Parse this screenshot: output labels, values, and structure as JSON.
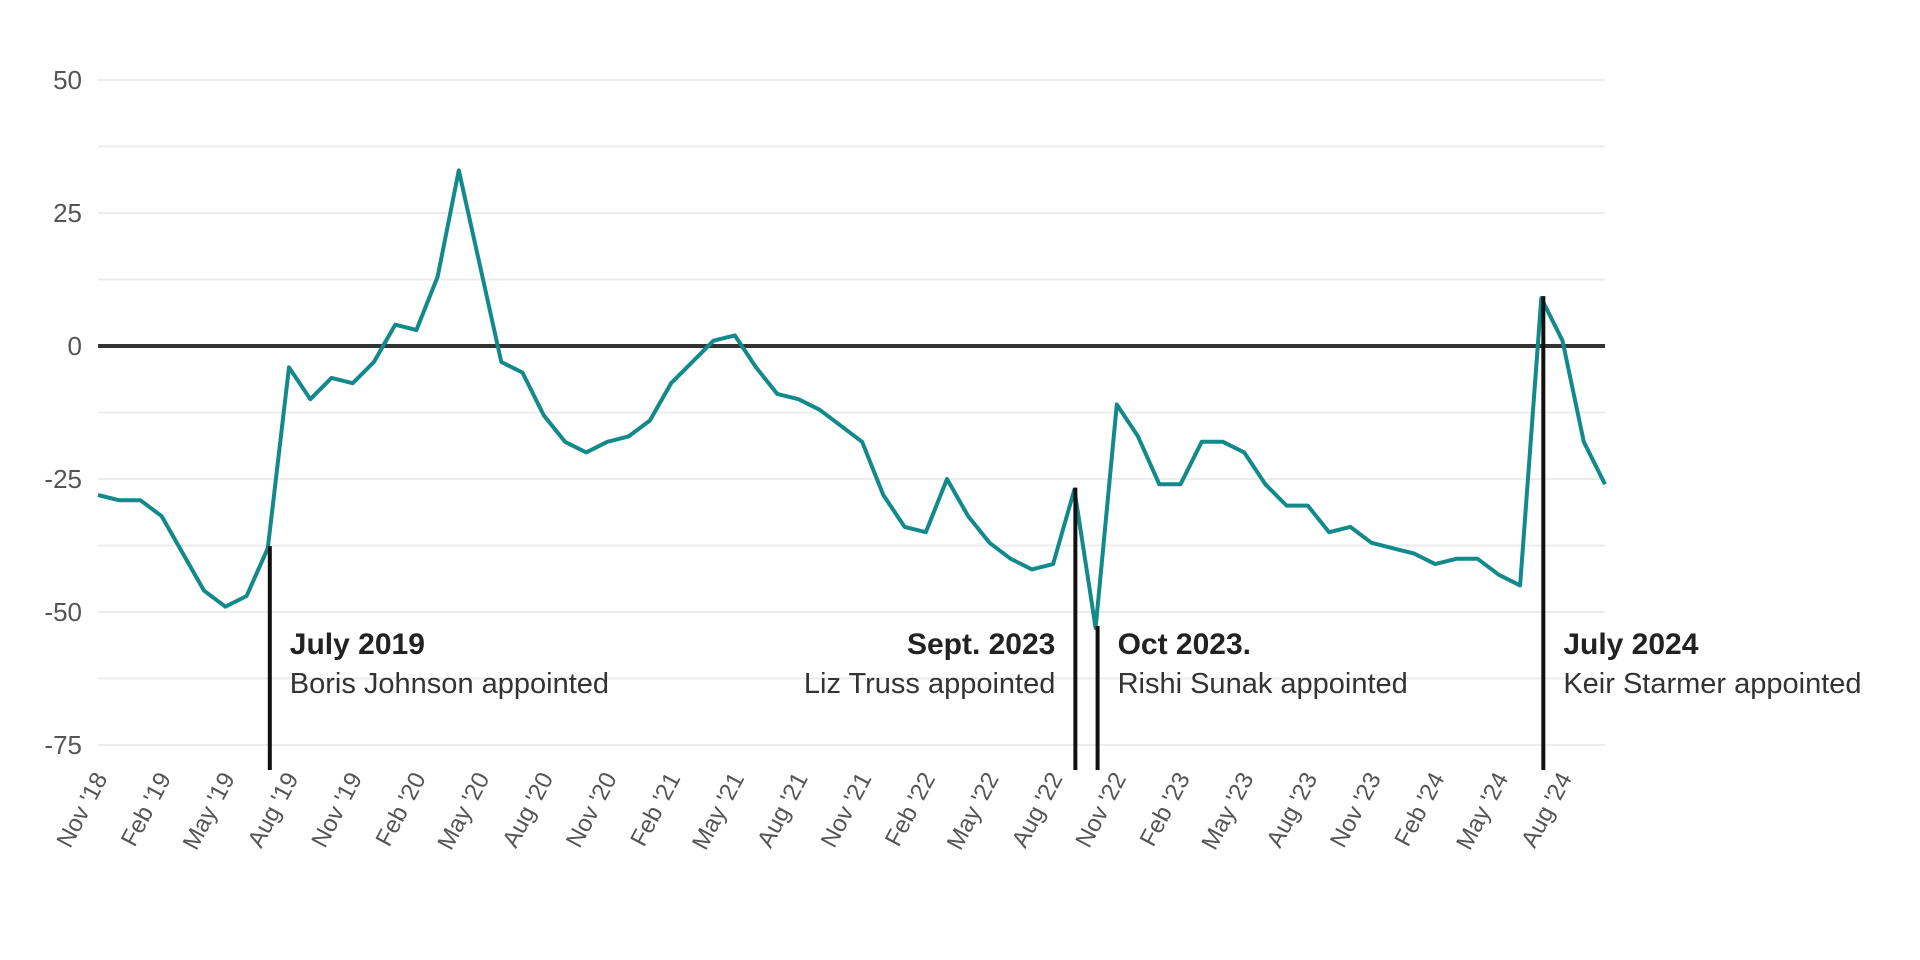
{
  "chart_data": {
    "type": "line",
    "title": "",
    "xlabel": "",
    "ylabel": "",
    "ylim": [
      -75,
      50
    ],
    "yticks": [
      50,
      25,
      0,
      -25,
      -50,
      -75
    ],
    "grid": true,
    "x_tick_labels": [
      "Nov '18",
      "Feb '19",
      "May '19",
      "Aug '19",
      "Nov '19",
      "Feb '20",
      "May '20",
      "Aug '20",
      "Nov '20",
      "Feb '21",
      "May '21",
      "Aug '21",
      "Nov '21",
      "Feb '22",
      "May '22",
      "Aug '22",
      "Nov '22",
      "Feb '23",
      "May '23",
      "Aug '23",
      "Nov '23",
      "Feb '24",
      "May '24",
      "Aug '24"
    ],
    "colors": {
      "line": "#12898a",
      "zero_line": "#333333",
      "grid": "#ececec",
      "marker": "#111111"
    },
    "series": [
      {
        "values": [
          -28,
          -29,
          -29,
          -32,
          -39,
          -46,
          -49,
          -47,
          -38,
          -4,
          -10,
          -6,
          -7,
          -3,
          4,
          3,
          13,
          33,
          15,
          -3,
          -5,
          -13,
          -18,
          -20,
          -18,
          -17,
          -14,
          -7,
          -3,
          1,
          2,
          -4,
          -9,
          -10,
          -12,
          -15,
          -18,
          -28,
          -34,
          -35,
          -25,
          -32,
          -37,
          -40,
          -42,
          -41,
          -27,
          -53,
          -11,
          -17,
          -26,
          -26,
          -18,
          -18,
          -20,
          -26,
          -30,
          -30,
          -35,
          -34,
          -37,
          -38,
          -39,
          -41,
          -40,
          -40,
          -43,
          -45,
          9,
          1,
          -18,
          -26
        ]
      }
    ],
    "annotations": [
      {
        "x_index": 8,
        "title": "July 2019",
        "text": "Boris Johnson appointed",
        "align": "left"
      },
      {
        "x_index": 46,
        "title": "Sept. 2023",
        "text": "Liz Truss appointed",
        "align": "right"
      },
      {
        "x_index": 47,
        "title": "Oct 2023.",
        "text": "Rishi Sunak appointed",
        "align": "left"
      },
      {
        "x_index": 68,
        "title": "July 2024",
        "text": "Keir Starmer appointed",
        "align": "left"
      }
    ]
  }
}
